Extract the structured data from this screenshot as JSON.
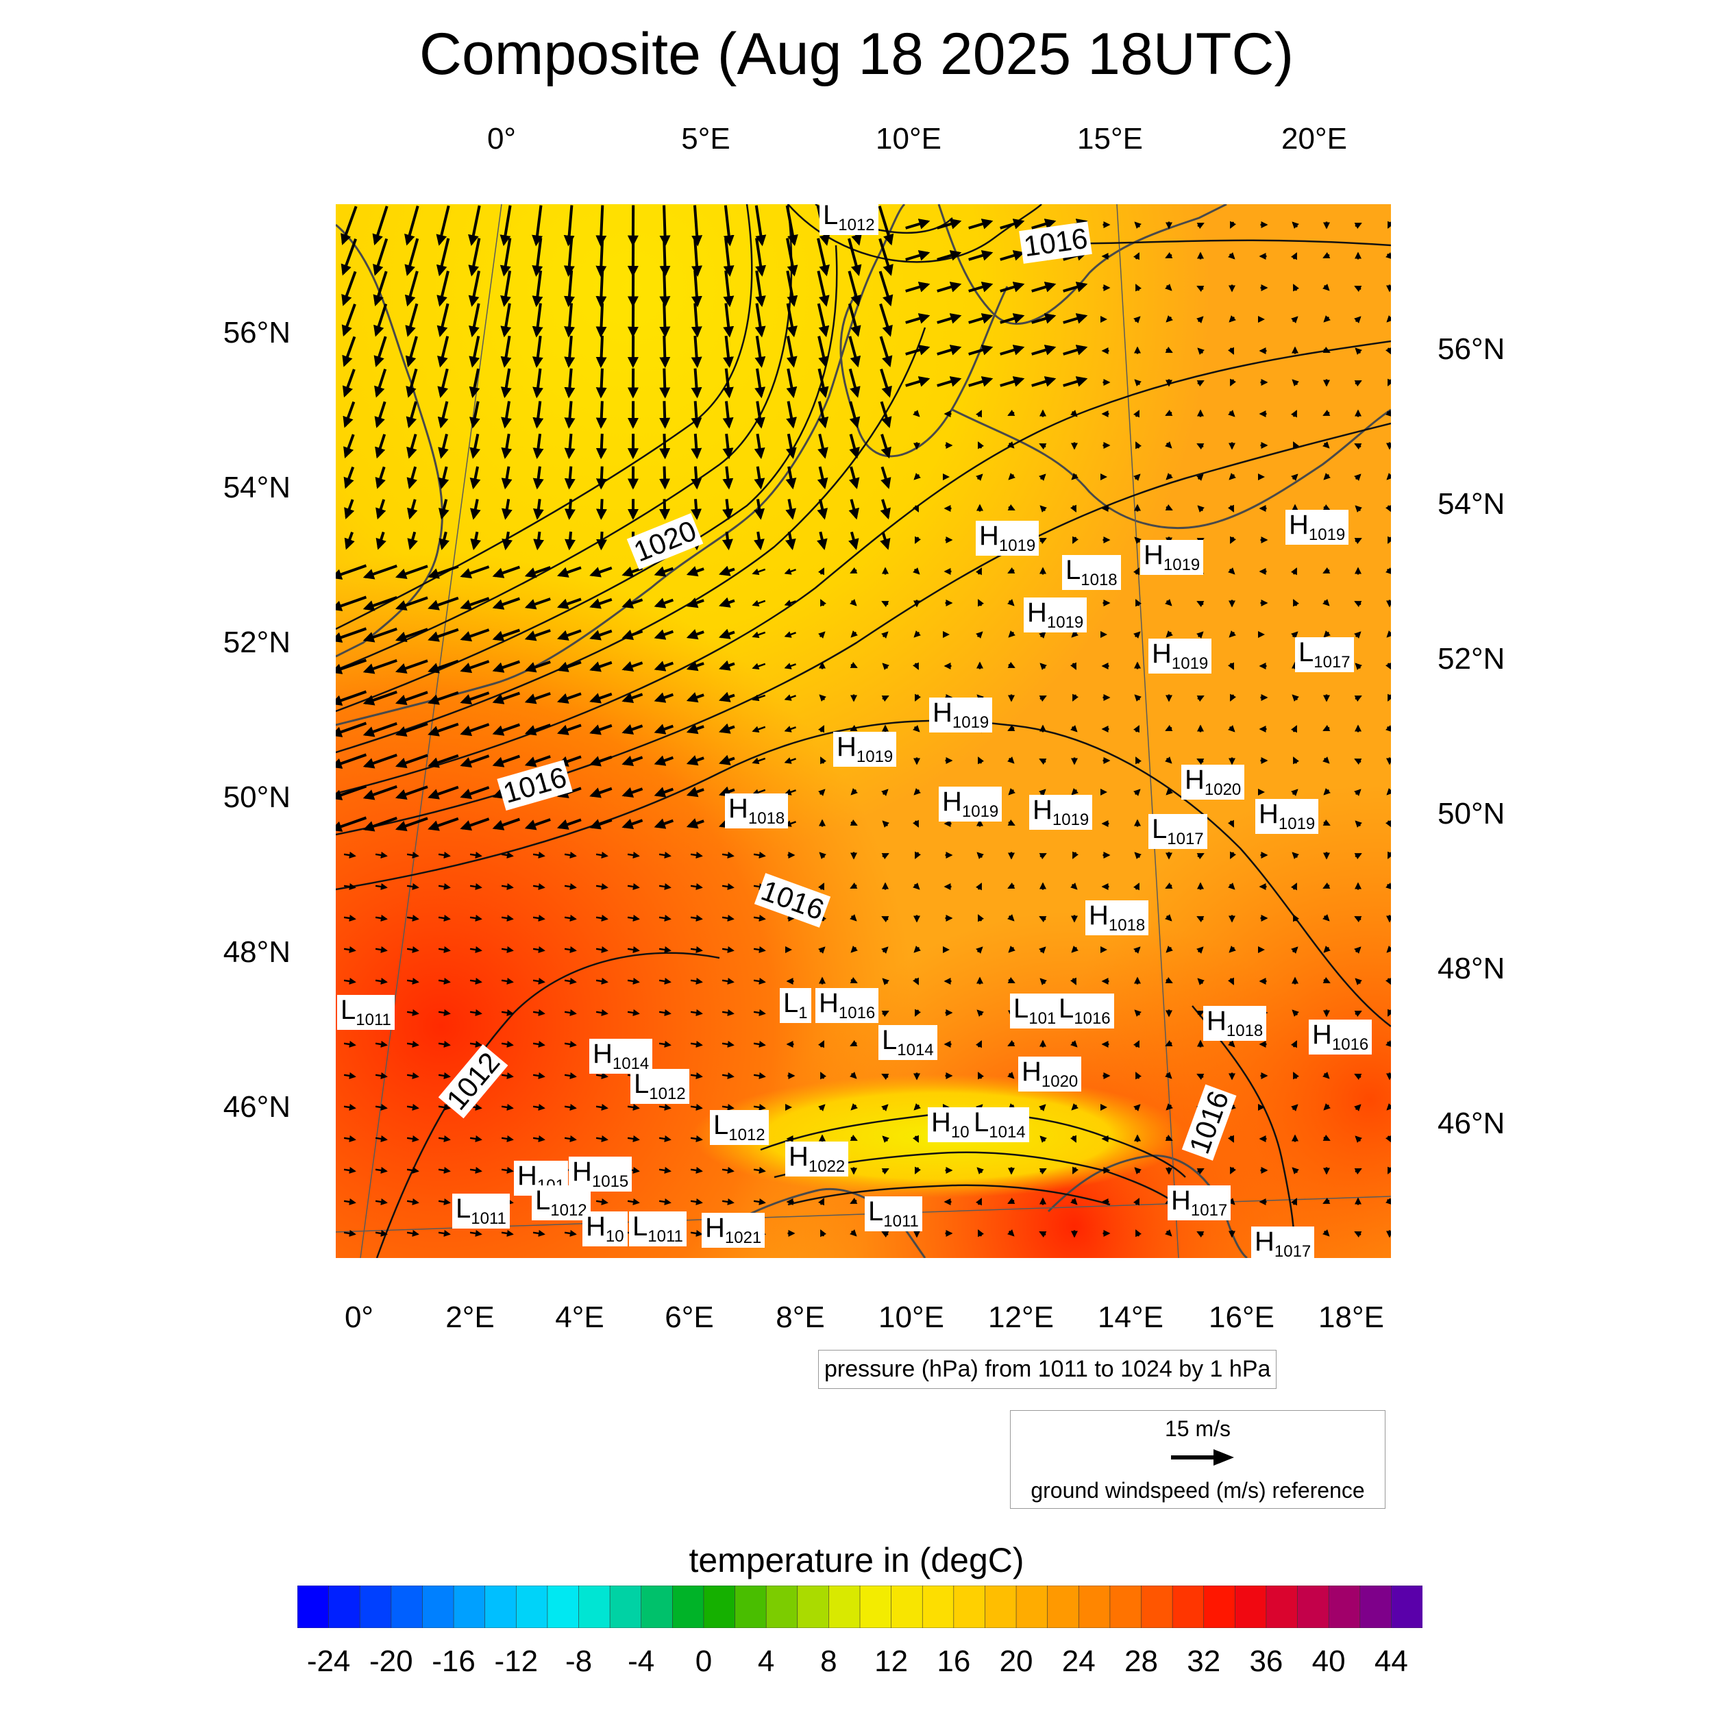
{
  "title": "Composite (Aug 18 2025 18UTC)",
  "top_lon_labels": [
    "0°",
    "5°E",
    "10°E",
    "15°E",
    "20°E"
  ],
  "bottom_lon_labels": [
    "0°",
    "2°E",
    "4°E",
    "6°E",
    "8°E",
    "10°E",
    "12°E",
    "14°E",
    "16°E",
    "18°E"
  ],
  "left_lat_labels": [
    "56°N",
    "54°N",
    "52°N",
    "50°N",
    "48°N",
    "46°N"
  ],
  "right_lat_labels": [
    "56°N",
    "54°N",
    "52°N",
    "50°N",
    "48°N",
    "46°N"
  ],
  "isobar_labels": [
    "1016",
    "1020",
    "1016",
    "1016",
    "1012",
    "1016"
  ],
  "pressure_centers": [
    {
      "type": "L",
      "value": "1012"
    },
    {
      "type": "H",
      "value": "1019"
    },
    {
      "type": "L",
      "value": "1018"
    },
    {
      "type": "H",
      "value": "1019"
    },
    {
      "type": "H",
      "value": "1019"
    },
    {
      "type": "H",
      "value": "1019"
    },
    {
      "type": "H",
      "value": "1019"
    },
    {
      "type": "L",
      "value": "1017"
    },
    {
      "type": "H",
      "value": "1019"
    },
    {
      "type": "H",
      "value": "1019"
    },
    {
      "type": "H",
      "value": "1018"
    },
    {
      "type": "H",
      "value": "1019"
    },
    {
      "type": "H",
      "value": "1019"
    },
    {
      "type": "H",
      "value": "1020"
    },
    {
      "type": "L",
      "value": "1017"
    },
    {
      "type": "H",
      "value": "1019"
    },
    {
      "type": "H",
      "value": "1018"
    },
    {
      "type": "L",
      "value": "1011"
    },
    {
      "type": "L",
      "value": "1"
    },
    {
      "type": "H",
      "value": "1016"
    },
    {
      "type": "L",
      "value": "1014"
    },
    {
      "type": "L",
      "value": "101"
    },
    {
      "type": "L",
      "value": "1016"
    },
    {
      "type": "H",
      "value": "1018"
    },
    {
      "type": "H",
      "value": "1016"
    },
    {
      "type": "H",
      "value": "1014"
    },
    {
      "type": "L",
      "value": "1012"
    },
    {
      "type": "H",
      "value": "1020"
    },
    {
      "type": "L",
      "value": "1012"
    },
    {
      "type": "H",
      "value": "10"
    },
    {
      "type": "L",
      "value": "1014"
    },
    {
      "type": "H",
      "value": "1022"
    },
    {
      "type": "H",
      "value": "101"
    },
    {
      "type": "H",
      "value": "1015"
    },
    {
      "type": "L",
      "value": "1012"
    },
    {
      "type": "L",
      "value": "1011"
    },
    {
      "type": "H",
      "value": "10"
    },
    {
      "type": "L",
      "value": "1011"
    },
    {
      "type": "H",
      "value": "1021"
    },
    {
      "type": "L",
      "value": "1011"
    },
    {
      "type": "H",
      "value": "1017"
    },
    {
      "type": "H",
      "value": "1017"
    }
  ],
  "pressure_info": "pressure (hPa) from 1011 to 1024 by 1 hPa",
  "wind_reference": {
    "speed": "15 m/s",
    "label": "ground windspeed (m/s) reference"
  },
  "colorbar": {
    "title": "temperature in (degC)",
    "labels": [
      "-24",
      "-20",
      "-16",
      "-12",
      "-8",
      "-4",
      "0",
      "4",
      "8",
      "12",
      "16",
      "20",
      "24",
      "28",
      "32",
      "36",
      "40",
      "44"
    ],
    "min": -26,
    "max": 46,
    "step": 2
  },
  "colors": {
    "cold_end": "#0000ff",
    "zero": "#10a800",
    "mild": "#ffe600",
    "warm": "#ff9a00",
    "hot": "#ff1a00",
    "hot_end": "#5a0099"
  }
}
